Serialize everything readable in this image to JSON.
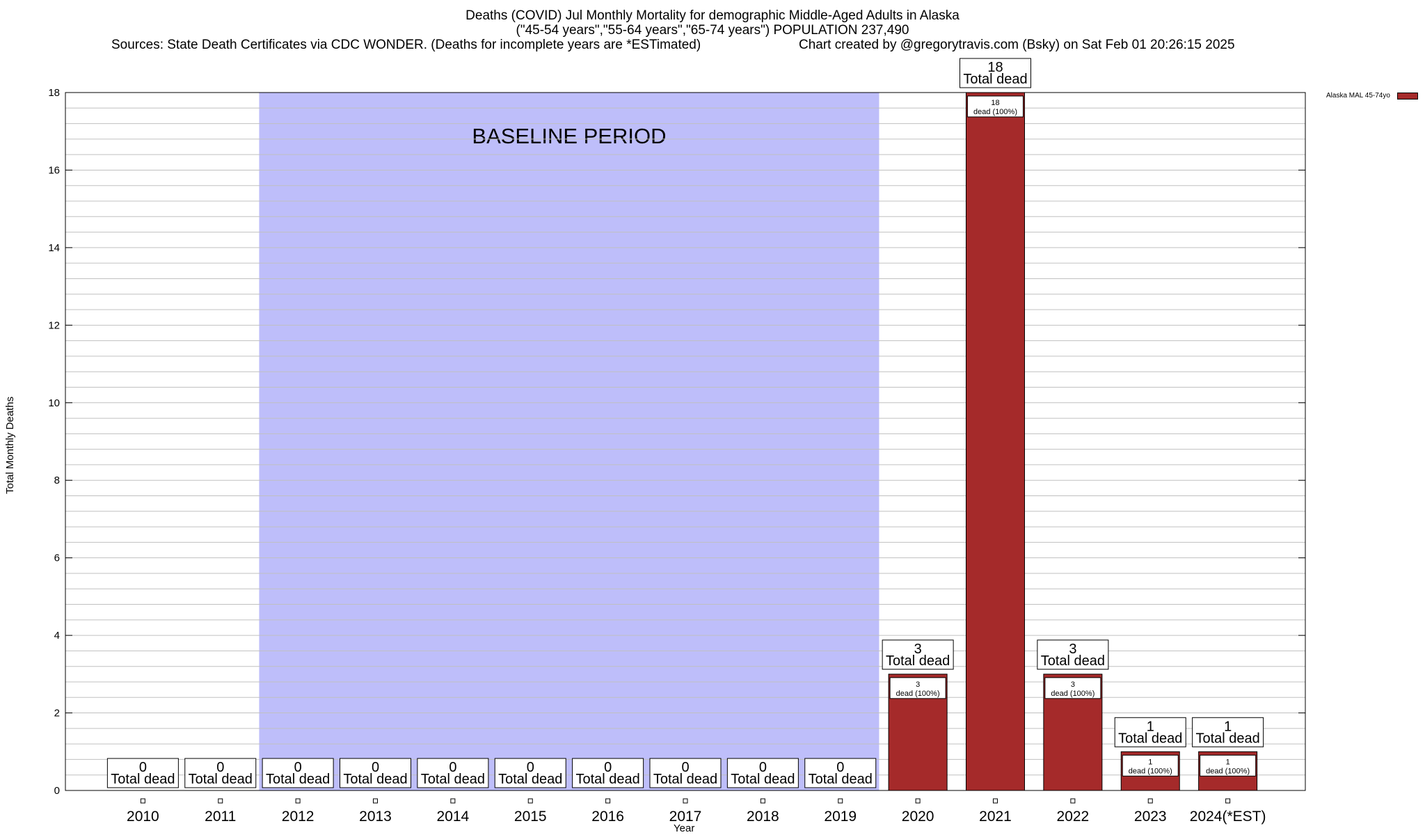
{
  "title": {
    "line1": "Deaths (COVID) Jul Monthly Mortality for demographic Middle-Aged Adults in Alaska",
    "line2": "(\"45-54 years\",\"55-64 years\",\"65-74 years\") POPULATION 237,490",
    "sources": "Sources: State Death Certificates via CDC WONDER. (Deaths for incomplete years are *ESTimated)",
    "credit": "Chart created by @gregorytravis.com (Bsky) on Sat Feb 01 20:26:15 2025"
  },
  "colors": {
    "bar": "#a52a2a",
    "baseline": "#bebefa",
    "grid": "#c0c0c0"
  },
  "chart_data": {
    "type": "bar",
    "xlabel": "Year",
    "ylabel": "Total Monthly Deaths",
    "ylim": [
      0,
      18
    ],
    "ytick_labels": [
      "0",
      "2",
      "4",
      "6",
      "8",
      "10",
      "12",
      "14",
      "16",
      "18"
    ],
    "grid": true,
    "legend_position": "top-right",
    "categories": [
      "2010",
      "2011",
      "2012",
      "2013",
      "2014",
      "2015",
      "2016",
      "2017",
      "2018",
      "2019",
      "2020",
      "2021",
      "2022",
      "2023",
      "2024(*EST)"
    ],
    "series": [
      {
        "name": "Alaska MAL 45-74yo",
        "values": [
          0,
          0,
          0,
          0,
          0,
          0,
          0,
          0,
          0,
          0,
          3,
          18,
          3,
          1,
          1
        ]
      }
    ],
    "total_labels": [
      "0",
      "0",
      "0",
      "0",
      "0",
      "0",
      "0",
      "0",
      "0",
      "0",
      "3",
      "18",
      "3",
      "1",
      "1"
    ],
    "total_suffix": "Total dead",
    "inner_labels": [
      "",
      "",
      "",
      "",
      "",
      "",
      "",
      "",
      "",
      "",
      "3",
      "18",
      "3",
      "1",
      "1"
    ],
    "inner_suffix": "dead (100%)",
    "baseline": {
      "label": "BASELINE PERIOD",
      "start": "2012",
      "end": "2019"
    }
  }
}
